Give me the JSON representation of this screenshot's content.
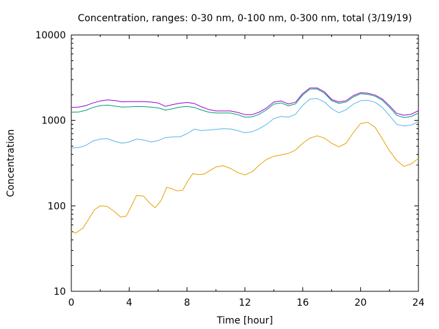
{
  "chart_data": {
    "type": "line",
    "title": "Concentration, ranges: 0-30 nm, 0-100 nm, 0-300 nm, total (3/19/19)",
    "xlabel": "Time [hour]",
    "ylabel": "Concentration",
    "xlim": [
      0,
      24
    ],
    "ylim": [
      10,
      10000
    ],
    "yscale": "log",
    "grid": false,
    "legend": "none",
    "xticks": [
      "0",
      "4",
      "8",
      "12",
      "16",
      "20",
      "24"
    ],
    "yticks": [
      "10",
      "100",
      "1000",
      "10000"
    ],
    "series": [
      {
        "color": "#e69f00",
        "points": [
          [
            0,
            50
          ],
          [
            0.3,
            48
          ],
          [
            0.8,
            55
          ],
          [
            1.2,
            70
          ],
          [
            1.6,
            90
          ],
          [
            2,
            100
          ],
          [
            2.5,
            98
          ],
          [
            3,
            85
          ],
          [
            3.4,
            74
          ],
          [
            3.8,
            76
          ],
          [
            4.1,
            95
          ],
          [
            4.5,
            132
          ],
          [
            5,
            130
          ],
          [
            5.4,
            108
          ],
          [
            5.8,
            95
          ],
          [
            6.2,
            115
          ],
          [
            6.6,
            165
          ],
          [
            7,
            158
          ],
          [
            7.3,
            150
          ],
          [
            7.7,
            152
          ],
          [
            8,
            190
          ],
          [
            8.4,
            238
          ],
          [
            8.8,
            232
          ],
          [
            9.2,
            236
          ],
          [
            9.6,
            260
          ],
          [
            10,
            285
          ],
          [
            10.5,
            295
          ],
          [
            11,
            275
          ],
          [
            11.5,
            245
          ],
          [
            12,
            230
          ],
          [
            12.5,
            250
          ],
          [
            13,
            300
          ],
          [
            13.5,
            350
          ],
          [
            14,
            380
          ],
          [
            14.5,
            395
          ],
          [
            15,
            410
          ],
          [
            15.5,
            450
          ],
          [
            16,
            540
          ],
          [
            16.5,
            620
          ],
          [
            17,
            660
          ],
          [
            17.5,
            620
          ],
          [
            18,
            540
          ],
          [
            18.5,
            490
          ],
          [
            19,
            540
          ],
          [
            19.5,
            720
          ],
          [
            20,
            920
          ],
          [
            20.5,
            950
          ],
          [
            21,
            830
          ],
          [
            21.5,
            610
          ],
          [
            22,
            440
          ],
          [
            22.5,
            340
          ],
          [
            23,
            290
          ],
          [
            23.5,
            310
          ],
          [
            24,
            360
          ]
        ]
      },
      {
        "color": "#56b4e9",
        "points": [
          [
            0,
            475
          ],
          [
            0.5,
            480
          ],
          [
            1,
            510
          ],
          [
            1.5,
            575
          ],
          [
            2,
            605
          ],
          [
            2.5,
            610
          ],
          [
            3,
            570
          ],
          [
            3.5,
            540
          ],
          [
            4,
            560
          ],
          [
            4.5,
            605
          ],
          [
            5,
            590
          ],
          [
            5.5,
            560
          ],
          [
            6,
            580
          ],
          [
            6.5,
            630
          ],
          [
            7,
            640
          ],
          [
            7.5,
            640
          ],
          [
            8,
            700
          ],
          [
            8.5,
            790
          ],
          [
            9,
            760
          ],
          [
            9.5,
            770
          ],
          [
            10,
            785
          ],
          [
            10.5,
            800
          ],
          [
            11,
            795
          ],
          [
            11.5,
            760
          ],
          [
            12,
            715
          ],
          [
            12.5,
            735
          ],
          [
            13,
            800
          ],
          [
            13.5,
            900
          ],
          [
            14,
            1050
          ],
          [
            14.5,
            1110
          ],
          [
            15,
            1090
          ],
          [
            15.5,
            1180
          ],
          [
            16,
            1500
          ],
          [
            16.5,
            1780
          ],
          [
            17,
            1800
          ],
          [
            17.5,
            1650
          ],
          [
            18,
            1370
          ],
          [
            18.5,
            1230
          ],
          [
            19,
            1330
          ],
          [
            19.5,
            1550
          ],
          [
            20,
            1700
          ],
          [
            20.5,
            1720
          ],
          [
            21,
            1630
          ],
          [
            21.5,
            1420
          ],
          [
            22,
            1140
          ],
          [
            22.5,
            900
          ],
          [
            23,
            860
          ],
          [
            23.5,
            880
          ],
          [
            24,
            970
          ]
        ]
      },
      {
        "color": "#009e73",
        "points": [
          [
            0,
            1245
          ],
          [
            0.5,
            1255
          ],
          [
            1,
            1310
          ],
          [
            1.5,
            1420
          ],
          [
            2,
            1490
          ],
          [
            2.5,
            1510
          ],
          [
            3,
            1470
          ],
          [
            3.5,
            1430
          ],
          [
            4,
            1440
          ],
          [
            4.5,
            1455
          ],
          [
            5,
            1450
          ],
          [
            5.5,
            1430
          ],
          [
            6,
            1400
          ],
          [
            6.5,
            1320
          ],
          [
            7,
            1370
          ],
          [
            7.5,
            1430
          ],
          [
            8,
            1460
          ],
          [
            8.5,
            1420
          ],
          [
            9,
            1320
          ],
          [
            9.5,
            1250
          ],
          [
            10,
            1220
          ],
          [
            10.5,
            1220
          ],
          [
            11,
            1220
          ],
          [
            11.5,
            1170
          ],
          [
            12,
            1090
          ],
          [
            12.5,
            1100
          ],
          [
            13,
            1180
          ],
          [
            13.5,
            1330
          ],
          [
            14,
            1550
          ],
          [
            14.5,
            1600
          ],
          [
            15,
            1480
          ],
          [
            15.5,
            1560
          ],
          [
            16,
            1980
          ],
          [
            16.5,
            2320
          ],
          [
            17,
            2330
          ],
          [
            17.5,
            2080
          ],
          [
            18,
            1700
          ],
          [
            18.5,
            1580
          ],
          [
            19,
            1640
          ],
          [
            19.5,
            1880
          ],
          [
            20,
            2050
          ],
          [
            20.5,
            2020
          ],
          [
            21,
            1920
          ],
          [
            21.5,
            1720
          ],
          [
            22,
            1420
          ],
          [
            22.5,
            1150
          ],
          [
            23,
            1080
          ],
          [
            23.5,
            1110
          ],
          [
            24,
            1220
          ]
        ]
      },
      {
        "color": "#9400d3",
        "points": [
          [
            0,
            1420
          ],
          [
            0.5,
            1430
          ],
          [
            1,
            1490
          ],
          [
            1.5,
            1600
          ],
          [
            2,
            1690
          ],
          [
            2.5,
            1740
          ],
          [
            3,
            1710
          ],
          [
            3.5,
            1650
          ],
          [
            4,
            1660
          ],
          [
            4.5,
            1660
          ],
          [
            5,
            1660
          ],
          [
            5.5,
            1640
          ],
          [
            6,
            1600
          ],
          [
            6.5,
            1460
          ],
          [
            7,
            1530
          ],
          [
            7.5,
            1590
          ],
          [
            8,
            1620
          ],
          [
            8.5,
            1580
          ],
          [
            9,
            1440
          ],
          [
            9.5,
            1340
          ],
          [
            10,
            1290
          ],
          [
            10.5,
            1290
          ],
          [
            11,
            1290
          ],
          [
            11.5,
            1240
          ],
          [
            12,
            1170
          ],
          [
            12.5,
            1170
          ],
          [
            13,
            1250
          ],
          [
            13.5,
            1400
          ],
          [
            14,
            1640
          ],
          [
            14.5,
            1690
          ],
          [
            15,
            1560
          ],
          [
            15.5,
            1630
          ],
          [
            16,
            2060
          ],
          [
            16.5,
            2400
          ],
          [
            17,
            2400
          ],
          [
            17.5,
            2160
          ],
          [
            18,
            1760
          ],
          [
            18.5,
            1640
          ],
          [
            19,
            1700
          ],
          [
            19.5,
            1950
          ],
          [
            20,
            2110
          ],
          [
            20.5,
            2080
          ],
          [
            21,
            1980
          ],
          [
            21.5,
            1780
          ],
          [
            22,
            1480
          ],
          [
            22.5,
            1210
          ],
          [
            23,
            1150
          ],
          [
            23.5,
            1180
          ],
          [
            24,
            1300
          ]
        ]
      }
    ]
  }
}
